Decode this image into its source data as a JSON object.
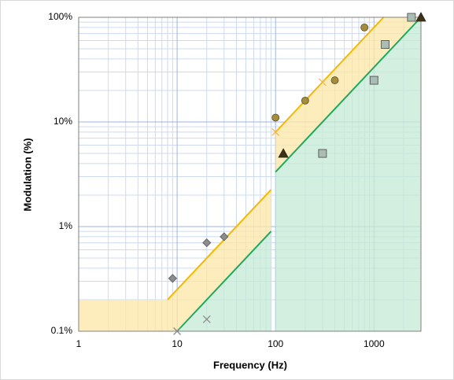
{
  "chart_data": {
    "type": "scatter",
    "xlabel": "Frequency (Hz)",
    "ylabel": "Modulation  (%)",
    "xscale": "log",
    "yscale": "log",
    "xlim": [
      1,
      3000
    ],
    "ylim": [
      0.1,
      100
    ],
    "xticks": [
      1,
      10,
      100,
      1000
    ],
    "yticks": [
      {
        "value": 0.1,
        "label": "0.1%"
      },
      {
        "value": 1,
        "label": "1%"
      },
      {
        "value": 10,
        "label": "10%"
      },
      {
        "value": 100,
        "label": "100%"
      }
    ],
    "grid": true,
    "minor_grid": true,
    "regions": [
      {
        "color": "#fde7a6",
        "x": [
          1,
          1,
          8,
          90,
          90,
          10
        ],
        "values": [
          0.1,
          0.2,
          0.2,
          2.25,
          0.9,
          0.1
        ]
      },
      {
        "color": "#fde7a6",
        "x": [
          100,
          1250,
          3000,
          100
        ],
        "values": [
          8,
          100,
          100,
          3.33
        ]
      },
      {
        "color": "#c4ead6",
        "x": [
          10,
          90,
          90
        ],
        "values": [
          0.1,
          0.9,
          0.1
        ]
      },
      {
        "color": "#c4ead6",
        "x": [
          100,
          3000,
          3000,
          100
        ],
        "values": [
          3.33,
          100,
          0.1,
          0.1
        ]
      }
    ],
    "lines": [
      {
        "color": "#f5b800",
        "x": [
          8,
          90,
          null,
          100,
          1250
        ],
        "values": [
          0.2,
          2.25,
          null,
          8,
          100
        ]
      },
      {
        "color": "#22a85e",
        "x": [
          10,
          90,
          null,
          100,
          3000
        ],
        "values": [
          0.1,
          0.9,
          null,
          3.33,
          100
        ]
      }
    ],
    "series": [
      {
        "marker": "diamond",
        "color": "#8c8c8c",
        "x": [
          9,
          20,
          30
        ],
        "values": [
          0.32,
          0.7,
          0.8
        ]
      },
      {
        "marker": "x",
        "color": "#8c8c8c",
        "x": [
          10,
          20
        ],
        "values": [
          0.1,
          0.13
        ]
      },
      {
        "marker": "x",
        "color": "#f2b84a",
        "x": [
          100,
          300
        ],
        "values": [
          8,
          24
        ]
      },
      {
        "marker": "circle",
        "color": "#a58c3e",
        "x": [
          100,
          200,
          400,
          800
        ],
        "values": [
          11,
          16,
          25,
          80
        ]
      },
      {
        "marker": "triangle",
        "color": "#3d3212",
        "x": [
          120,
          3000
        ],
        "values": [
          5,
          100
        ]
      },
      {
        "marker": "square",
        "color": "#a9bdb4",
        "x": [
          300,
          1000,
          1300,
          2400
        ],
        "values": [
          5,
          25,
          55,
          100
        ]
      }
    ]
  }
}
